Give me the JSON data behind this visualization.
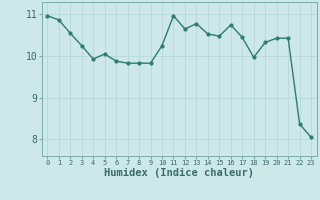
{
  "x": [
    0,
    1,
    2,
    3,
    4,
    5,
    6,
    7,
    8,
    9,
    10,
    11,
    12,
    13,
    14,
    15,
    16,
    17,
    18,
    19,
    20,
    21,
    22,
    23
  ],
  "y": [
    10.97,
    10.87,
    10.55,
    10.25,
    9.93,
    10.05,
    9.88,
    9.83,
    9.83,
    9.83,
    10.25,
    10.97,
    10.65,
    10.78,
    10.53,
    10.48,
    10.75,
    10.45,
    9.97,
    10.33,
    10.43,
    10.43,
    8.37,
    8.05
  ],
  "xlabel": "Humidex (Indice chaleur)",
  "xticks": [
    0,
    1,
    2,
    3,
    4,
    5,
    6,
    7,
    8,
    9,
    10,
    11,
    12,
    13,
    14,
    15,
    16,
    17,
    18,
    19,
    20,
    21,
    22,
    23
  ],
  "yticks": [
    8,
    9,
    10,
    11
  ],
  "ylim": [
    7.6,
    11.3
  ],
  "xlim": [
    -0.5,
    23.5
  ],
  "line_color": "#2e7d6e",
  "bg_color": "#cce8e8",
  "grid_color": "#b8d8d8",
  "spine_color": "#7aabaa",
  "tick_color": "#3a6b6a",
  "label_color": "#3a6b6a",
  "marker": "o",
  "markersize": 2.0,
  "linewidth": 1.0,
  "xlabel_fontsize": 7.5,
  "xtick_fontsize": 5.0,
  "ytick_fontsize": 7.0
}
